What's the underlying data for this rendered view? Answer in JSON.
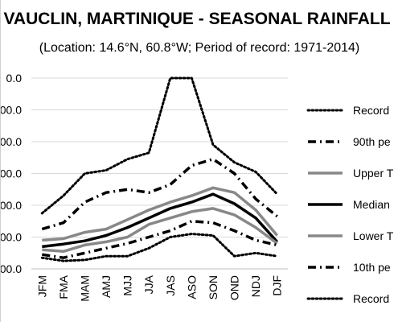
{
  "chart_data": {
    "type": "line",
    "title": "VAUCLIN, MARTINIQUE - SEASONAL RAINFALL",
    "subtitle": "(Location: 14.6°N, 60.8°W; Period of record: 1971-2014)",
    "ytick_labels": [
      "0.0",
      "00.0",
      "00.0",
      "00.0",
      "00.0",
      "00.0",
      "00.0"
    ],
    "ylim": [
      0,
      600
    ],
    "categories": [
      "JFM",
      "FMA",
      "MAM",
      "AMJ",
      "MJJ",
      "JJA",
      "JAS",
      "ASO",
      "SON",
      "OND",
      "NDJ",
      "DJF"
    ],
    "legend_position": "right",
    "series": [
      {
        "name": "Record",
        "color": "#000000",
        "style": "dotted",
        "values": [
          175,
          230,
          300,
          310,
          345,
          365,
          600,
          600,
          390,
          335,
          305,
          235
        ]
      },
      {
        "name": "90th pe",
        "color": "#000000",
        "style": "dashdot",
        "values": [
          125,
          145,
          210,
          240,
          250,
          240,
          265,
          325,
          345,
          300,
          220,
          165
        ]
      },
      {
        "name": "Upper T",
        "color": "#888888",
        "style": "solid",
        "values": [
          90,
          95,
          115,
          125,
          155,
          185,
          210,
          230,
          255,
          240,
          185,
          105
        ]
      },
      {
        "name": "Median",
        "color": "#000000",
        "style": "solid",
        "values": [
          70,
          78,
          88,
          105,
          130,
          160,
          190,
          210,
          235,
          205,
          160,
          85
        ]
      },
      {
        "name": "Lower T",
        "color": "#888888",
        "style": "solid",
        "values": [
          60,
          55,
          75,
          85,
          100,
          140,
          160,
          180,
          190,
          170,
          130,
          80
        ]
      },
      {
        "name": "10th pe",
        "color": "#000000",
        "style": "dashdot",
        "values": [
          45,
          35,
          50,
          65,
          80,
          100,
          120,
          150,
          145,
          120,
          90,
          75
        ]
      },
      {
        "name": "Record",
        "color": "#000000",
        "style": "dotted",
        "values": [
          35,
          25,
          28,
          40,
          40,
          65,
          100,
          110,
          105,
          40,
          50,
          40
        ]
      }
    ]
  }
}
